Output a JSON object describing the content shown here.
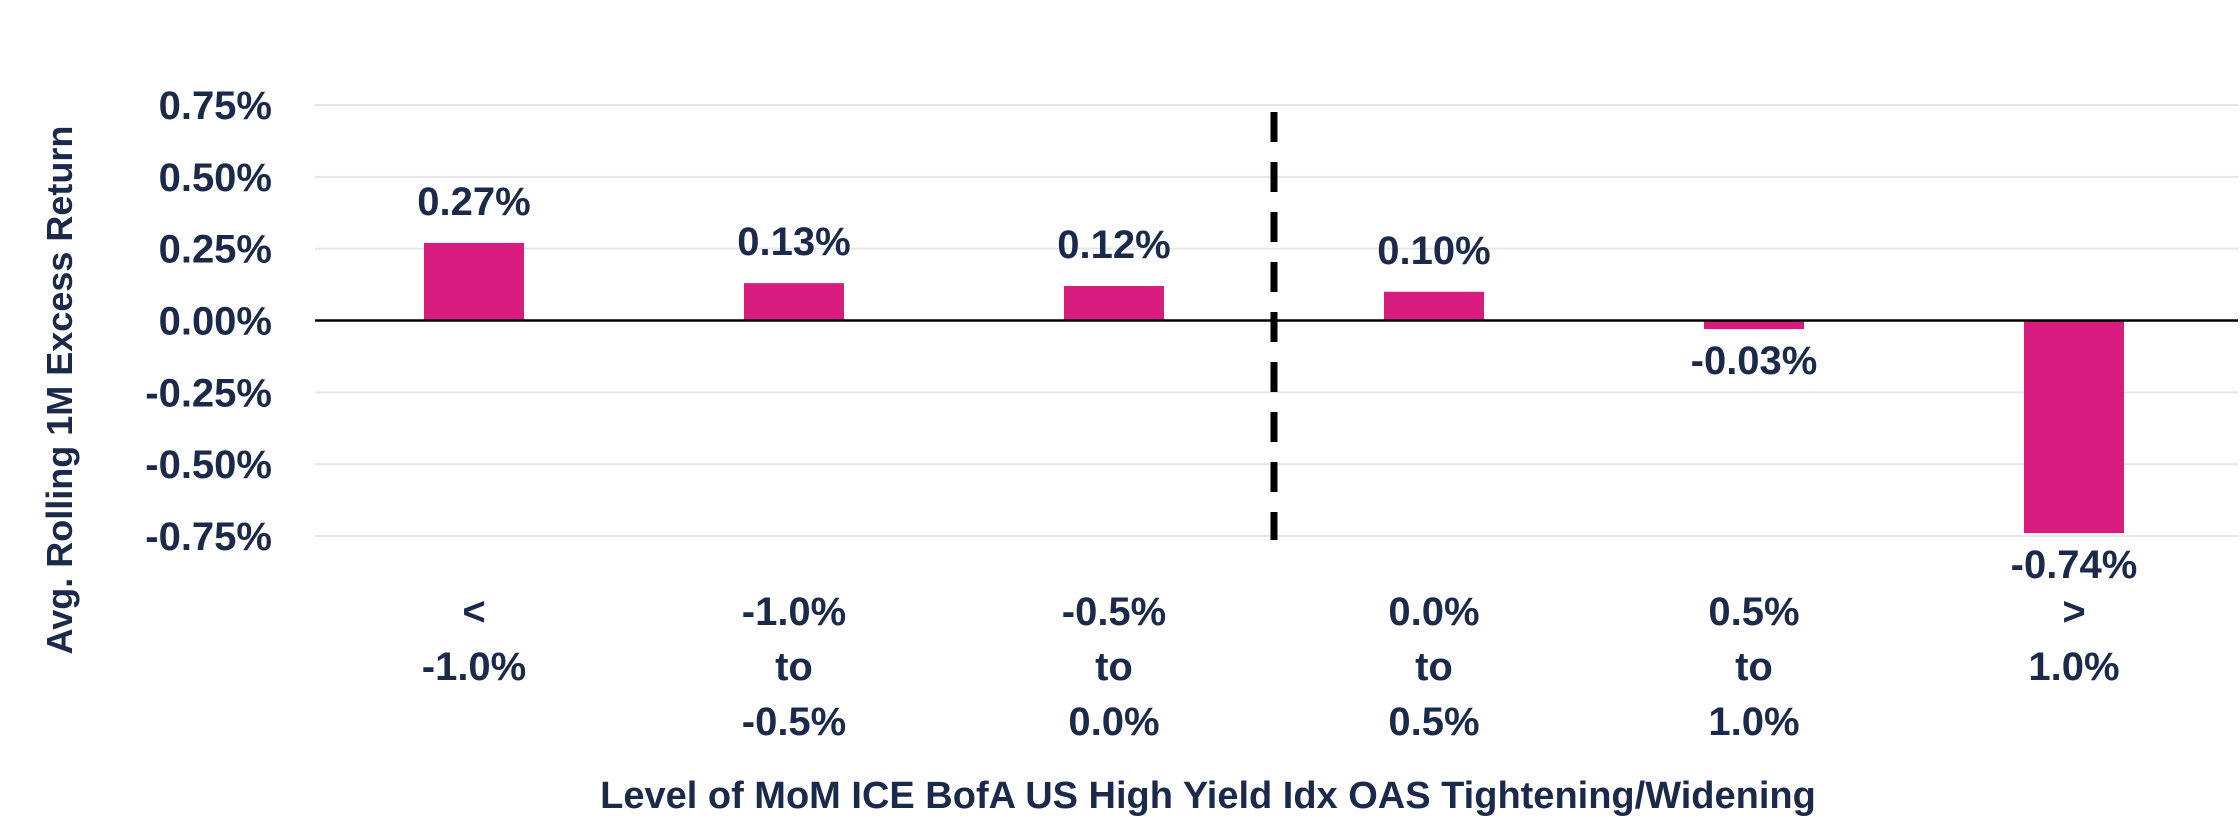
{
  "chart_data": {
    "type": "bar",
    "title": "",
    "xlabel": "Level of MoM ICE BofA US High Yield Idx OAS Tightening/Widening",
    "ylabel": "Avg. Rolling 1M Excess Return",
    "categories": [
      [
        "<",
        "-1.0%"
      ],
      [
        "-1.0%",
        "to",
        "-0.5%"
      ],
      [
        "-0.5%",
        "to",
        "0.0%"
      ],
      [
        "0.0%",
        "to",
        "0.5%"
      ],
      [
        "0.5%",
        "to",
        "1.0%"
      ],
      [
        ">",
        "1.0%"
      ]
    ],
    "values": [
      0.27,
      0.13,
      0.12,
      0.1,
      -0.03,
      -0.74
    ],
    "data_labels": [
      "0.27%",
      "0.13%",
      "0.12%",
      "0.10%",
      "-0.03%",
      "-0.74%"
    ],
    "ylim": [
      -0.75,
      0.75
    ],
    "yticks": [
      0.75,
      0.5,
      0.25,
      0.0,
      -0.25,
      -0.5,
      -0.75
    ],
    "ytick_labels": [
      "0.75%",
      "0.50%",
      "0.25%",
      "0.00%",
      "-0.25%",
      "-0.50%",
      "-0.75%"
    ],
    "grid": true,
    "divider_after_category": 2,
    "colors": {
      "bar": "#d81b7e",
      "text": "#1b2a4a",
      "grid": "#e6e6e6",
      "axis": "#000000",
      "divider": "#000000"
    }
  }
}
